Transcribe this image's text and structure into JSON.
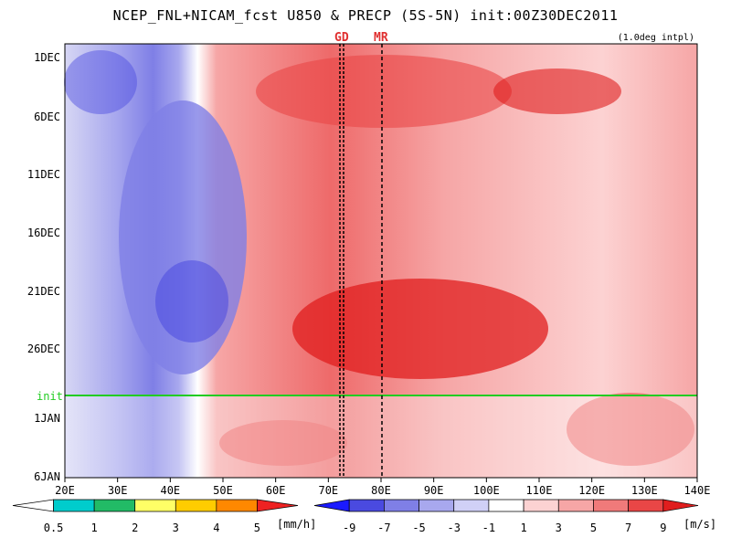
{
  "chart_data": {
    "type": "heatmap",
    "title": "NCEP_FNL+NICAM_fcst U850 & PRECP (5S-5N) init:00Z30DEC2011",
    "subtitle": "(1.0deg intpl)",
    "xlabel": "",
    "ylabel": "",
    "x_ticks": [
      "20E",
      "30E",
      "40E",
      "50E",
      "60E",
      "70E",
      "80E",
      "90E",
      "100E",
      "110E",
      "120E",
      "130E",
      "140E"
    ],
    "y_ticks": [
      "1DEC",
      "6DEC",
      "11DEC",
      "16DEC",
      "21DEC",
      "26DEC",
      "1JAN",
      "6JAN"
    ],
    "init_label": "init",
    "markers": [
      {
        "label": "GD",
        "lon": 72.5
      },
      {
        "label": "MR",
        "lon": 80
      }
    ],
    "x_range": [
      20,
      140
    ],
    "y_range": [
      "1DEC",
      "6JAN"
    ],
    "u850_colorbar": {
      "ticks": [
        "-9",
        "-7",
        "-5",
        "-3",
        "-1",
        "1",
        "3",
        "5",
        "7",
        "9"
      ],
      "unit": "[m/s]",
      "colors": [
        "#1a1aff",
        "#4a4ae0",
        "#7f7fe6",
        "#a8a8ee",
        "#d0d0f6",
        "#ffffff",
        "#fcd2d2",
        "#f6a6a6",
        "#f07a7a",
        "#e94646",
        "#e01e1e"
      ]
    },
    "precip_colorbar": {
      "ticks": [
        "0.5",
        "1",
        "2",
        "3",
        "4",
        "5"
      ],
      "unit": "[mm/h]",
      "colors": [
        "#ffffff",
        "#00cccc",
        "#22bb66",
        "#ffff66",
        "#ffcc00",
        "#ff8800",
        "#ee2222"
      ]
    }
  }
}
